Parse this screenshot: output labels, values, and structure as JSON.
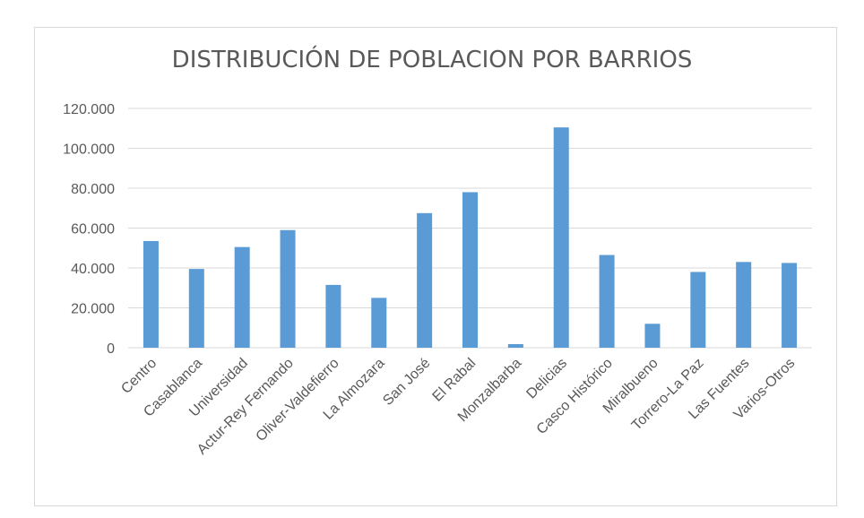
{
  "chart_data": {
    "type": "bar",
    "title": "DISTRIBUCIÓN DE POBLACION POR BARRIOS",
    "xlabel": "",
    "ylabel": "",
    "categories": [
      "Centro",
      "Casablanca",
      "Universidad",
      "Actur-Rey Fernando",
      "Oliver-Valdefierro",
      "La Almozara",
      "San José",
      "El Rabal",
      "Monzalbarba",
      "Delicias",
      "Casco Histórico",
      "Miralbueno",
      "Torrero-La Paz",
      "Las Fuentes",
      "Varios-Otros"
    ],
    "values": [
      53500,
      39500,
      50500,
      59000,
      31500,
      25000,
      67500,
      78000,
      1800,
      110500,
      46500,
      12000,
      38000,
      43000,
      42500
    ],
    "ylim": [
      0,
      120000
    ],
    "yticks": [
      0,
      20000,
      40000,
      60000,
      80000,
      100000,
      120000
    ],
    "ytick_labels": [
      "0",
      "20.000",
      "40.000",
      "60.000",
      "80.000",
      "100.000",
      "120.000"
    ],
    "grid": true,
    "legend": "none",
    "bar_color": "#5b9bd5",
    "grid_color": "#d9d9d9"
  }
}
